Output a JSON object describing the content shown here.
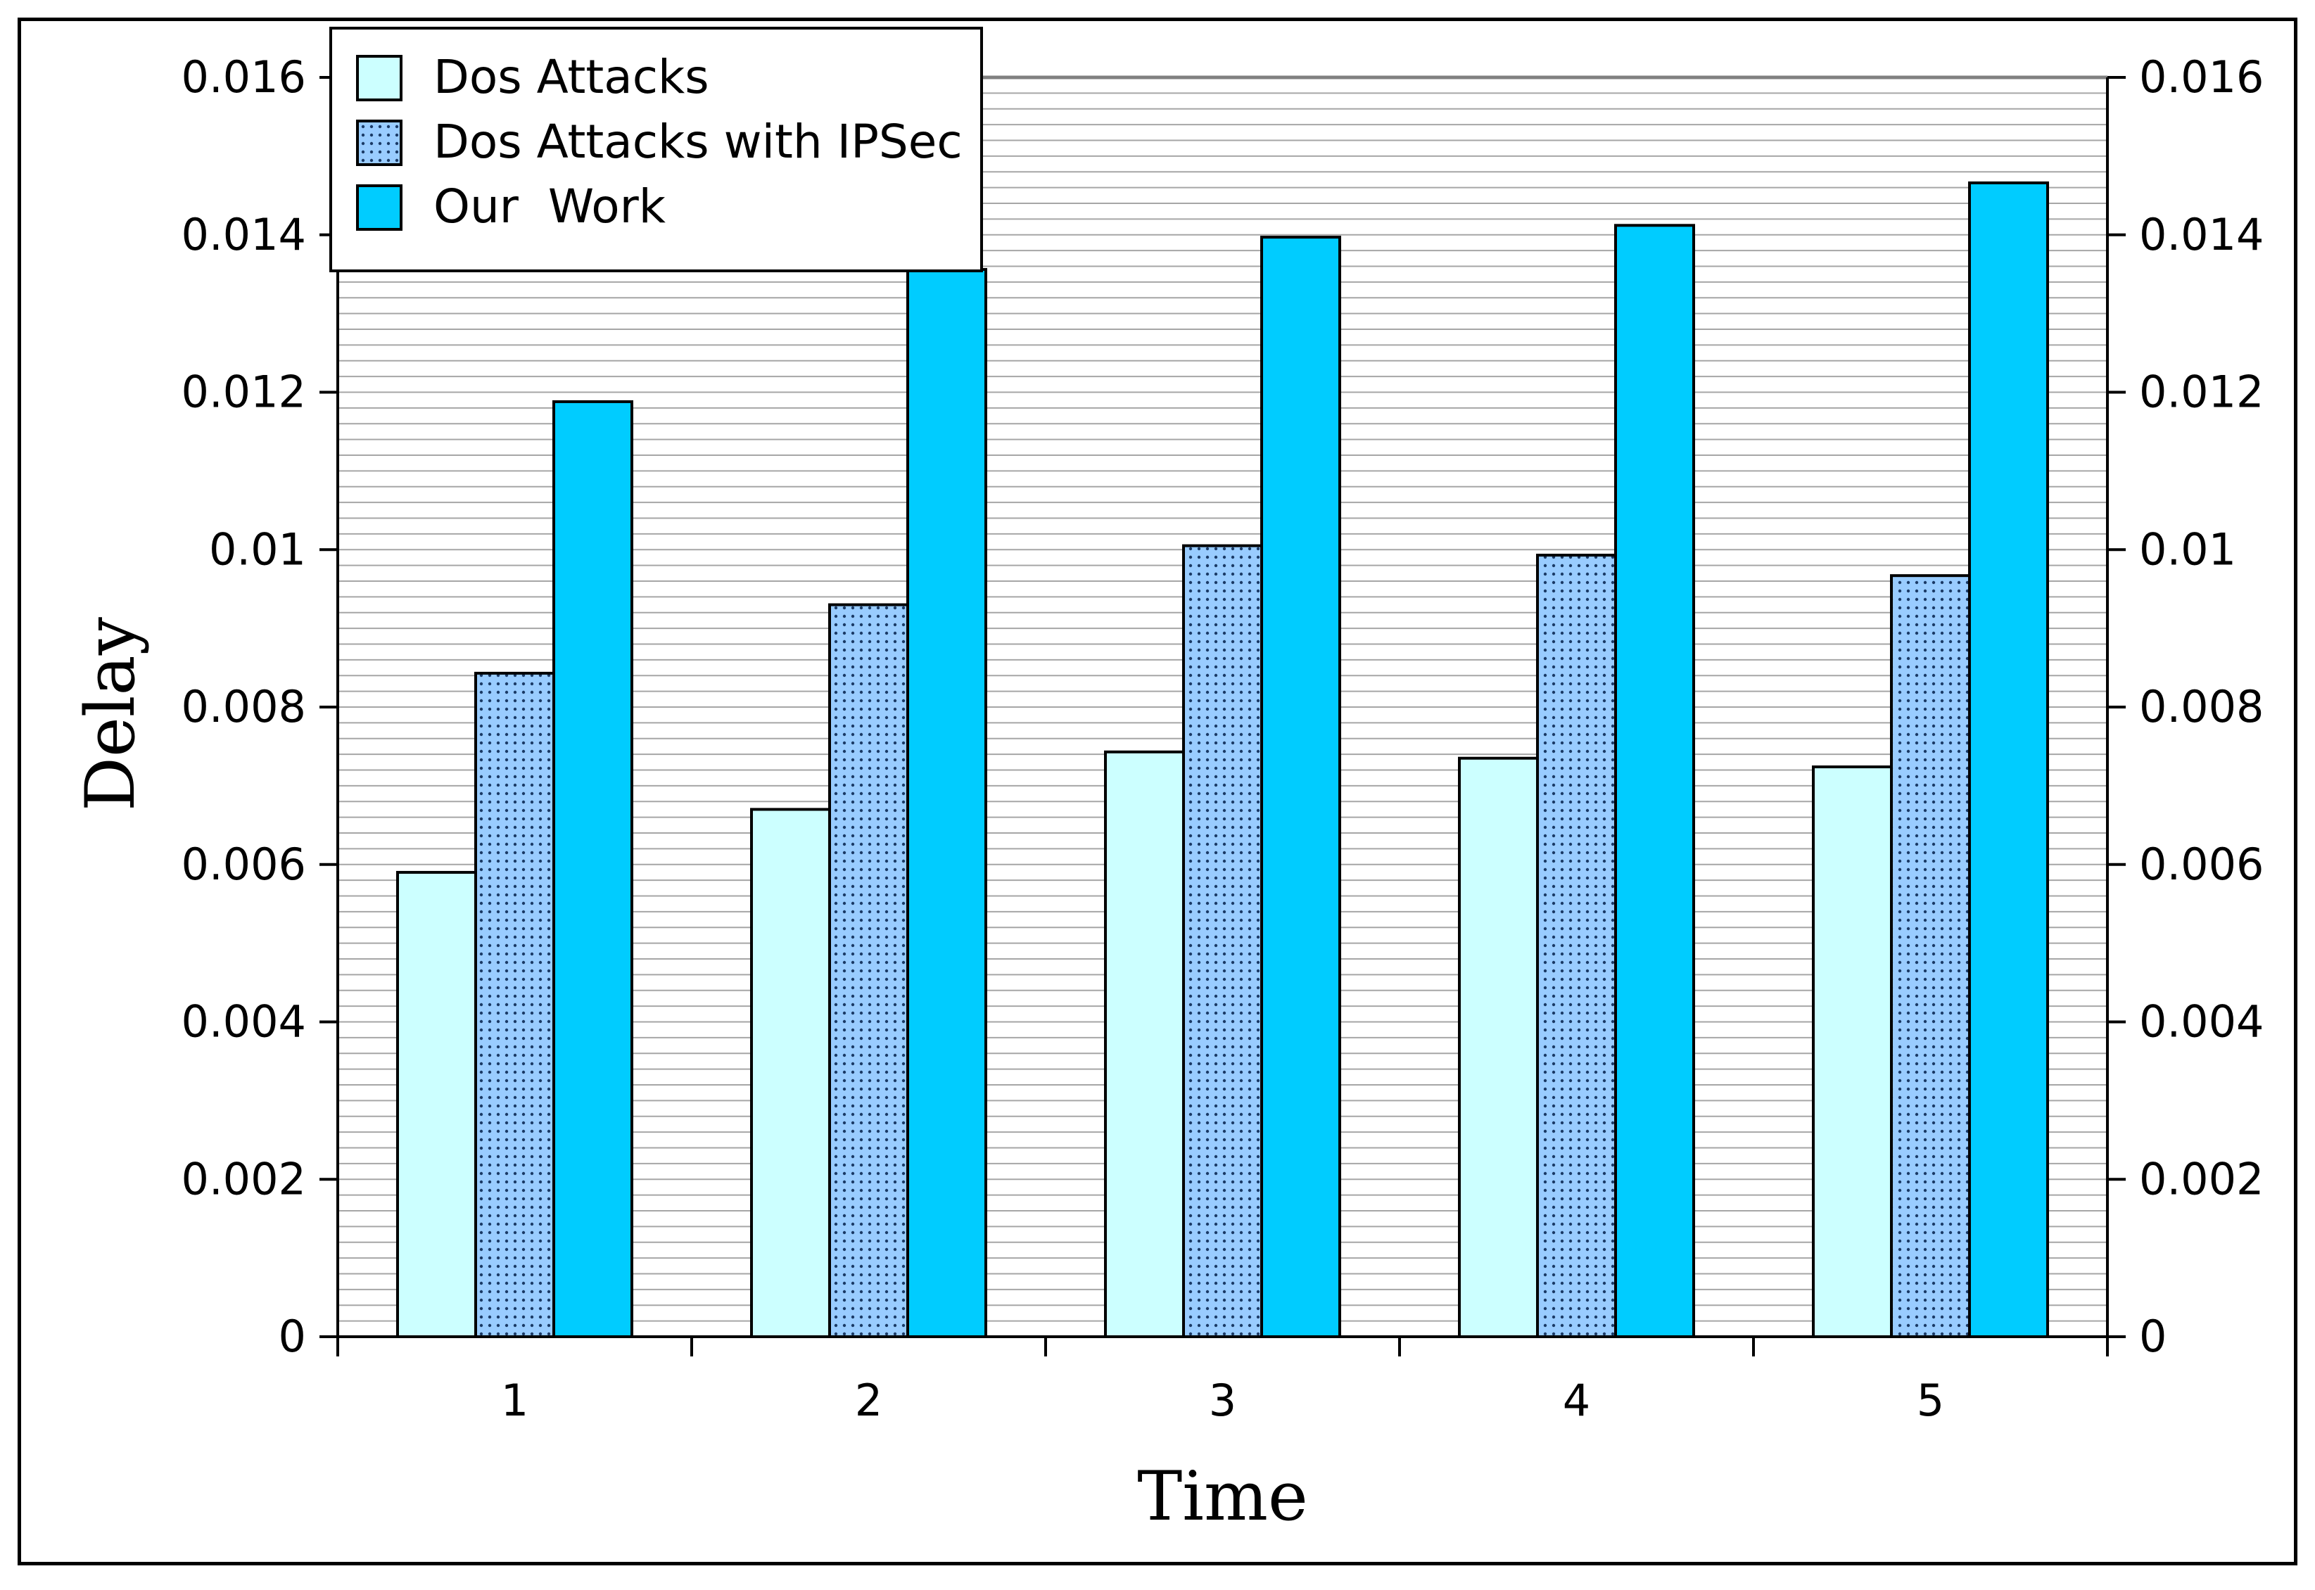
{
  "chart_data": {
    "type": "bar",
    "title": "",
    "xlabel": "Time",
    "ylabel": "Delay",
    "categories": [
      "1",
      "2",
      "3",
      "4",
      "5"
    ],
    "series": [
      {
        "name": "Dos Attacks",
        "values": [
          0.0059,
          0.0067,
          0.00743,
          0.00735,
          0.00724
        ],
        "color": "#ccffff",
        "pattern": "solid"
      },
      {
        "name": "Dos Attacks with IPSec",
        "values": [
          0.00843,
          0.0093,
          0.01005,
          0.00993,
          0.00967
        ],
        "color": "#99ccff",
        "pattern": "dotted"
      },
      {
        "name": "Our  Work",
        "values": [
          0.01188,
          0.01356,
          0.01397,
          0.01412,
          0.01466
        ],
        "color": "#00ccff",
        "pattern": "solid"
      }
    ],
    "ylim": [
      0,
      0.016
    ],
    "y_ticks": [
      "0",
      "0.002",
      "0.004",
      "0.006",
      "0.008",
      "0.01",
      "0.012",
      "0.014",
      "0.016"
    ],
    "secondary_y_axis": "right (mirrors left)",
    "grid": "horizontal minor lines",
    "legend_position": "top-left"
  }
}
